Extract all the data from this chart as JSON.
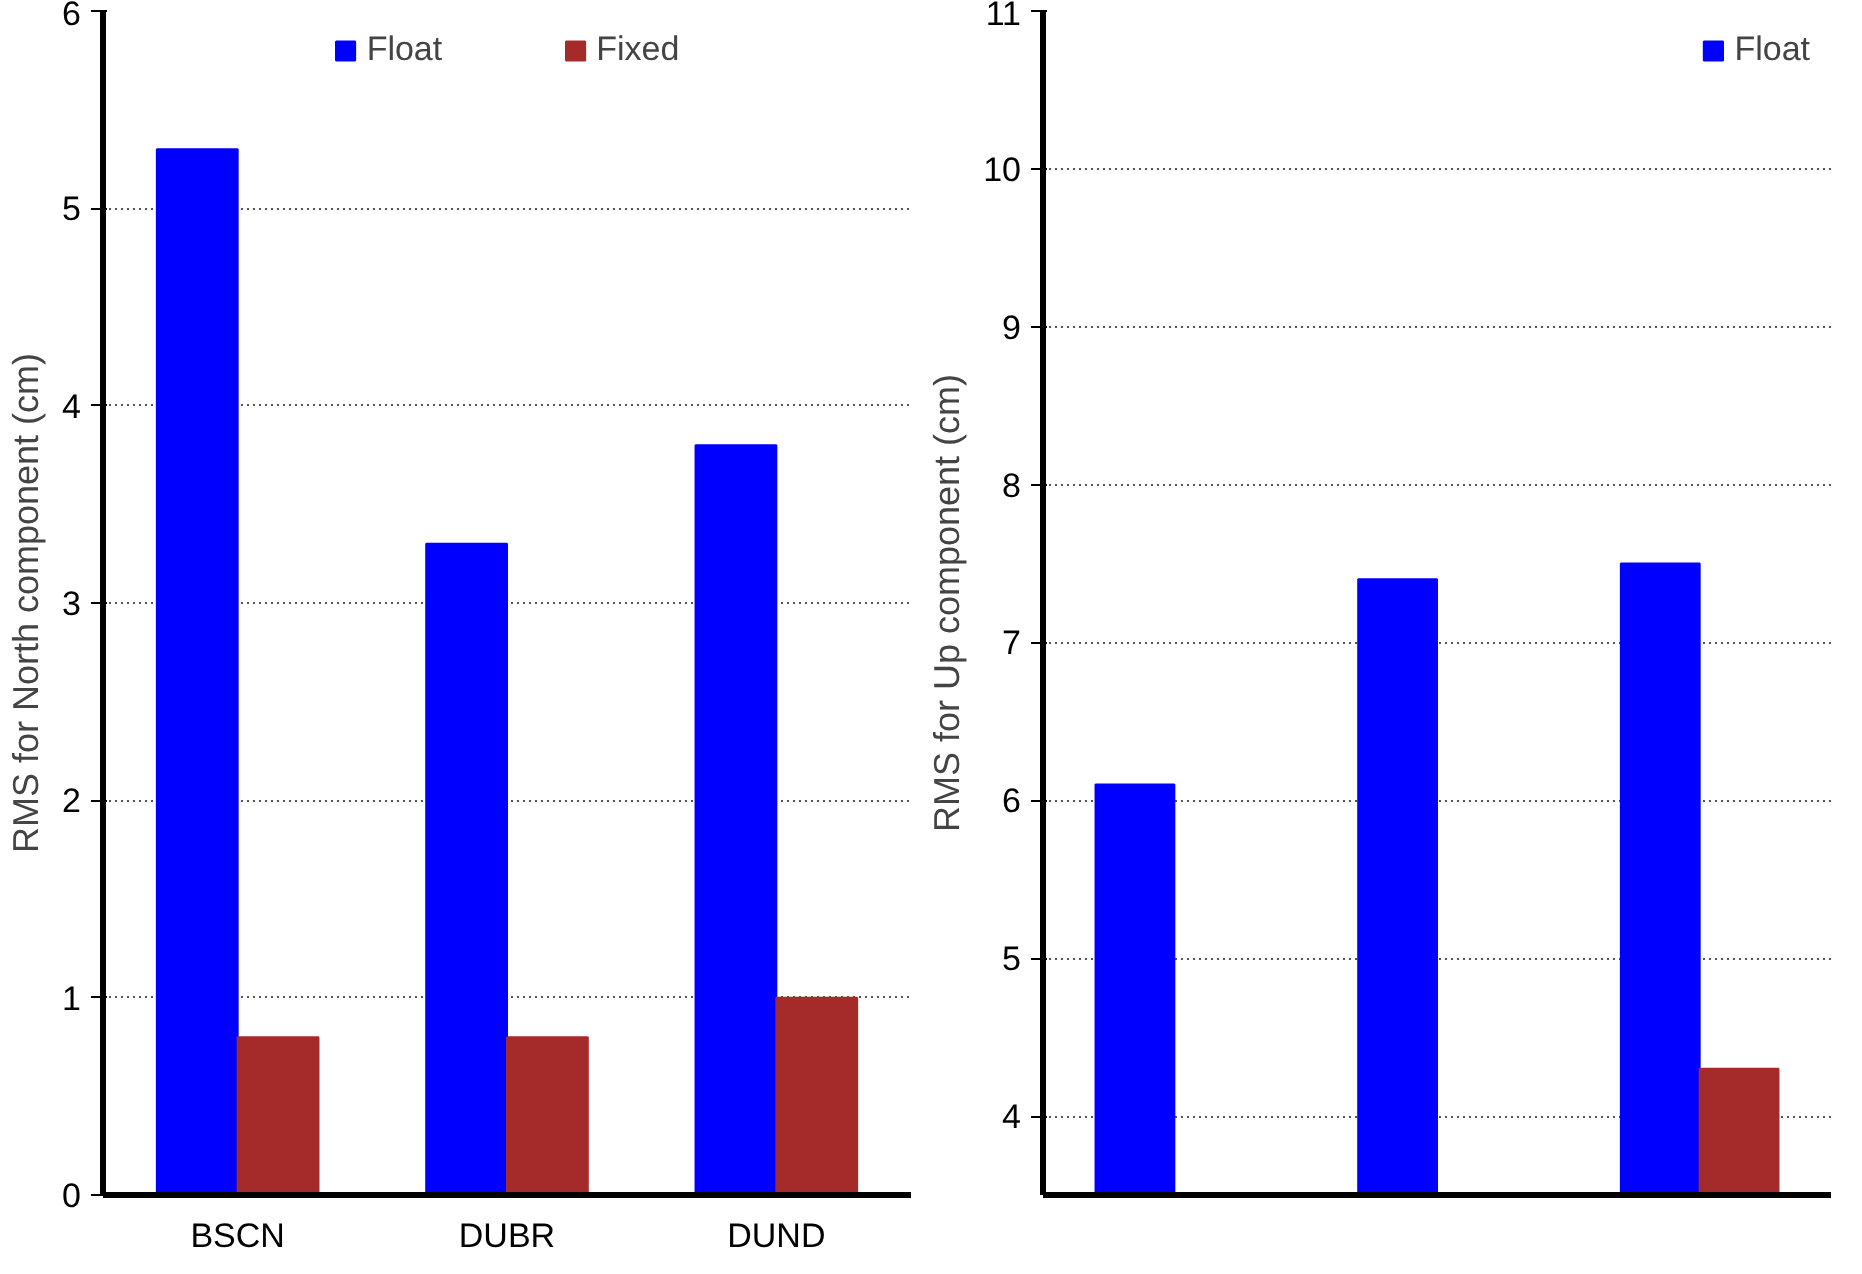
{
  "chart_data": [
    {
      "type": "bar",
      "ylabel": "RMS for North component (cm)",
      "categories": [
        "BSCN",
        "DUBR",
        "DUND"
      ],
      "ylim": [
        0,
        6
      ],
      "yticks": [
        0,
        1,
        2,
        3,
        4,
        5,
        6
      ],
      "grid": "y",
      "legend": "top",
      "series": [
        {
          "name": "Float",
          "color": "#0000ff",
          "values": [
            5.3,
            3.3,
            3.8
          ]
        },
        {
          "name": "Fixed",
          "color": "#a52a2a",
          "values": [
            0.8,
            0.8,
            1.0
          ]
        }
      ]
    },
    {
      "type": "bar",
      "ylabel": "RMS for Up component (cm)",
      "categories": [
        null,
        null,
        null
      ],
      "ylim": [
        3.5,
        11
      ],
      "yticks": [
        4,
        5,
        6,
        7,
        8,
        9,
        10,
        11
      ],
      "grid": "y",
      "legend": "top right",
      "series": [
        {
          "name": "Float",
          "color": "#0000ff",
          "values": [
            6.1,
            7.4,
            7.5
          ]
        },
        {
          "color": "#a52a2a",
          "values": [
            null,
            null,
            4.3
          ]
        }
      ]
    }
  ]
}
